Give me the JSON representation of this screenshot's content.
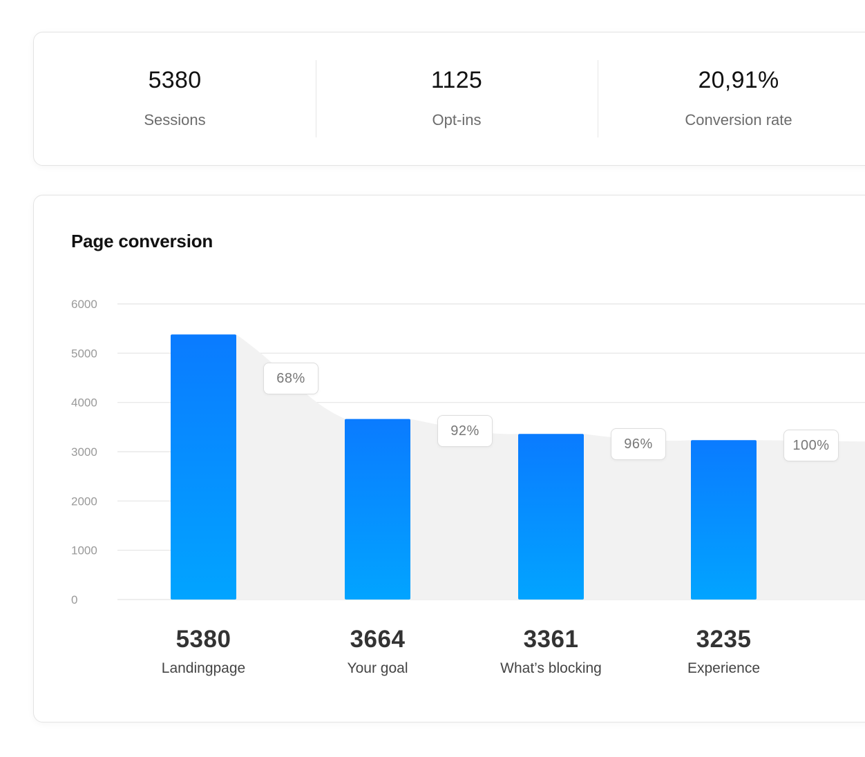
{
  "stats": [
    {
      "value": "5380",
      "label": "Sessions"
    },
    {
      "value": "1125",
      "label": "Opt-ins"
    },
    {
      "value": "20,91%",
      "label": "Conversion rate"
    }
  ],
  "colors": {
    "bar_top": "#0A7BFF",
    "bar_bottom": "#02A4FF",
    "area": "#F2F2F2",
    "grid": "#E4E4E4"
  },
  "chart_data": {
    "type": "bar",
    "title": "Page conversion",
    "xlabel": "",
    "ylabel": "",
    "ylim": [
      0,
      6000
    ],
    "yticks": [
      "0",
      "1000",
      "2000",
      "3000",
      "4000",
      "5000",
      "6000"
    ],
    "categories": [
      "Landingpage",
      "Your goal",
      "What’s blocking",
      "Experience"
    ],
    "values": [
      5380,
      3664,
      3361,
      3235
    ],
    "value_labels": [
      "5380",
      "3664",
      "3361",
      "3235"
    ],
    "conversion_rates": [
      "68%",
      "92%",
      "96%",
      "100%"
    ],
    "grid": true,
    "legend": "none"
  }
}
